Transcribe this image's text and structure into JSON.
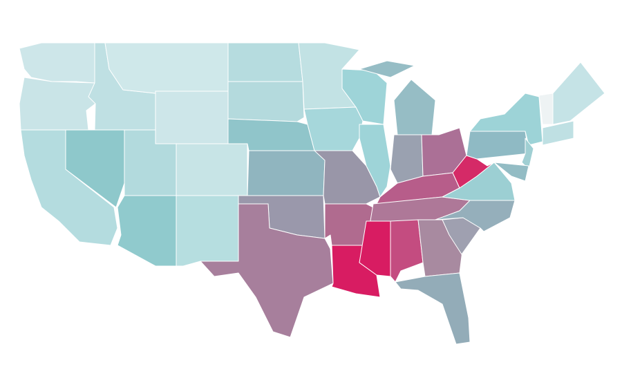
{
  "map": {
    "regions": [
      {
        "color": "#cde6e9"
      },
      {
        "color": "#c9e4e7"
      },
      {
        "color": "#b4dcdf"
      },
      {
        "color": "#8ec8cb"
      },
      {
        "color": "#bfe0e3"
      },
      {
        "color": "#cfe8ea"
      },
      {
        "color": "#cde6e9"
      },
      {
        "color": "#b2dadd"
      },
      {
        "color": "#90cacd"
      },
      {
        "color": "#c7e4e6"
      },
      {
        "color": "#b6dee0"
      },
      {
        "color": "#b6dcdf"
      },
      {
        "color": "#b4dadd"
      },
      {
        "color": "#90c5ca"
      },
      {
        "color": "#90b5bf"
      },
      {
        "color": "#9a98ab"
      },
      {
        "color": "#a77f9c"
      },
      {
        "color": "#c2e2e4"
      },
      {
        "color": "#a6d7db"
      },
      {
        "color": "#9996a8"
      },
      {
        "color": "#b06b8f"
      },
      {
        "color": "#d81c62"
      },
      {
        "color": "#9ed4d8"
      },
      {
        "color": "#9ed4d8"
      },
      {
        "color": "#96bdc5"
      },
      {
        "color": "#9aa1b0"
      },
      {
        "color": "#ab7096"
      },
      {
        "color": "#b75d8a"
      },
      {
        "color": "#ae7898"
      },
      {
        "color": "#d81c62"
      },
      {
        "color": "#c44c80"
      },
      {
        "color": "#a88aa0"
      },
      {
        "color": "#93acb8"
      },
      {
        "color": "#9fa0b0"
      },
      {
        "color": "#95afbb"
      },
      {
        "color": "#9ccfd3"
      },
      {
        "color": "#d52a67"
      },
      {
        "color": "#8fbac4"
      },
      {
        "color": "#9dd3d7"
      },
      {
        "color": "#c5e3e6"
      },
      {
        "color": "#eef3f4"
      },
      {
        "color": "#a0cfd3"
      },
      {
        "color": "#93bcc4"
      },
      {
        "color": "#bfe0e3"
      }
    ]
  }
}
